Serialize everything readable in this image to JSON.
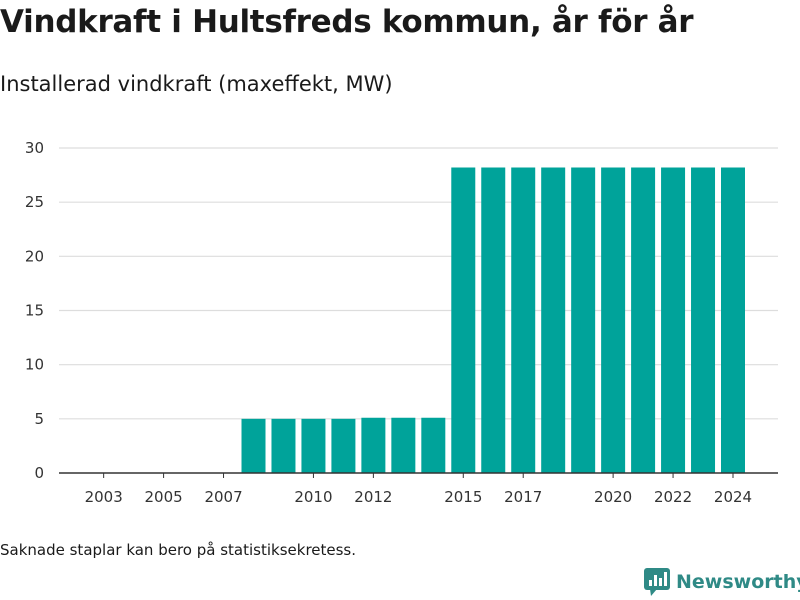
{
  "title": "Vindkraft i Hultsfreds kommun, år för år",
  "subtitle": "Installerad vindkraft (maxeffekt, MW)",
  "footnote": "Saknade staplar kan bero på statistiksekretess.",
  "brand": {
    "name": "Newsworthy",
    "icon": "newsworthy-logo-icon",
    "color": "#2f8a86"
  },
  "colors": {
    "bar": "#00a39a",
    "grid": "#dddddd",
    "axis": "#333333"
  },
  "chart_data": {
    "type": "bar",
    "title": "Installerad vindkraft (maxeffekt, MW)",
    "xlabel": "",
    "ylabel": "",
    "categories": [
      "2003",
      "2004",
      "2005",
      "2006",
      "2007",
      "2008",
      "2009",
      "2010",
      "2011",
      "2012",
      "2013",
      "2014",
      "2015",
      "2016",
      "2017",
      "2018",
      "2019",
      "2020",
      "2021",
      "2022",
      "2023",
      "2024"
    ],
    "values": [
      0,
      0,
      0,
      0,
      0,
      5.0,
      5.0,
      5.0,
      5.0,
      5.1,
      5.1,
      5.1,
      28.2,
      28.2,
      28.2,
      28.2,
      28.2,
      28.2,
      28.2,
      28.2,
      28.2,
      28.2
    ],
    "x_tick_labels": [
      "2003",
      "2005",
      "2007",
      "2010",
      "2012",
      "2015",
      "2017",
      "2020",
      "2022",
      "2024"
    ],
    "y_ticks": [
      0,
      5,
      10,
      15,
      20,
      25,
      30
    ],
    "ylim": [
      0,
      30
    ],
    "grid": true,
    "legend": "none"
  }
}
